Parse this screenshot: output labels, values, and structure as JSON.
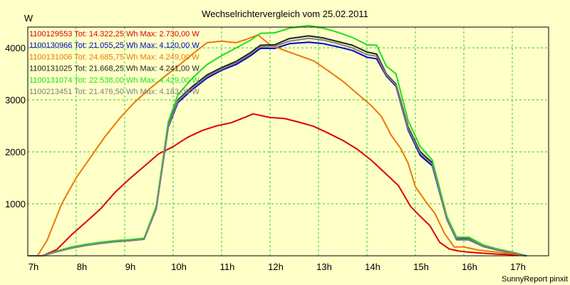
{
  "chart_data": {
    "type": "line",
    "title": "Wechselrichtervergleich vom 25.02.2011",
    "ylabel": "W",
    "footer": "SunnyReport pinxit",
    "ylim": [
      0,
      4400
    ],
    "xlim": [
      7,
      17.75
    ],
    "yticks": [
      1000,
      2000,
      3000,
      4000
    ],
    "xticks": [
      {
        "v": 7,
        "label": "7h"
      },
      {
        "v": 8,
        "label": "8h"
      },
      {
        "v": 9,
        "label": "9h"
      },
      {
        "v": 10,
        "label": "10h"
      },
      {
        "v": 11,
        "label": "11h"
      },
      {
        "v": 12,
        "label": "12h"
      },
      {
        "v": 13,
        "label": "13h"
      },
      {
        "v": 14,
        "label": "14h"
      },
      {
        "v": 15,
        "label": "15h"
      },
      {
        "v": 16,
        "label": "16h"
      },
      {
        "v": 17,
        "label": "17h"
      }
    ],
    "grid": true,
    "series": [
      {
        "name": "1100129553 Tot: 14.322,25 Wh Max: 2.730,00 W",
        "color": "#dd0000",
        "points": [
          [
            7,
            0
          ],
          [
            7.3,
            0
          ],
          [
            7.6,
            120
          ],
          [
            7.9,
            400
          ],
          [
            8.2,
            650
          ],
          [
            8.5,
            900
          ],
          [
            8.8,
            1220
          ],
          [
            9.1,
            1480
          ],
          [
            9.4,
            1720
          ],
          [
            9.7,
            1960
          ],
          [
            10,
            2100
          ],
          [
            10.3,
            2280
          ],
          [
            10.6,
            2410
          ],
          [
            10.9,
            2500
          ],
          [
            11.2,
            2560
          ],
          [
            11.5,
            2670
          ],
          [
            11.65,
            2730
          ],
          [
            12,
            2660
          ],
          [
            12.3,
            2640
          ],
          [
            12.6,
            2570
          ],
          [
            12.9,
            2490
          ],
          [
            13.2,
            2360
          ],
          [
            13.5,
            2220
          ],
          [
            13.8,
            2050
          ],
          [
            14.1,
            1830
          ],
          [
            14.4,
            1570
          ],
          [
            14.65,
            1350
          ],
          [
            14.9,
            950
          ],
          [
            15.1,
            760
          ],
          [
            15.3,
            580
          ],
          [
            15.5,
            260
          ],
          [
            15.7,
            130
          ],
          [
            15.9,
            90
          ],
          [
            16.1,
            70
          ],
          [
            16.4,
            50
          ],
          [
            16.7,
            30
          ],
          [
            17,
            20
          ],
          [
            17.3,
            0
          ]
        ]
      },
      {
        "name": "1100130966 Tot: 21.055,25 Wh Max: 4.120,00 W",
        "color": "#0000cc",
        "points": [
          [
            7,
            0
          ],
          [
            7.3,
            0
          ],
          [
            7.6,
            80
          ],
          [
            7.9,
            150
          ],
          [
            8.2,
            200
          ],
          [
            8.5,
            240
          ],
          [
            8.8,
            270
          ],
          [
            9.1,
            290
          ],
          [
            9.4,
            320
          ],
          [
            9.65,
            900
          ],
          [
            9.9,
            2480
          ],
          [
            10.1,
            2950
          ],
          [
            10.4,
            3200
          ],
          [
            10.7,
            3420
          ],
          [
            11,
            3570
          ],
          [
            11.3,
            3680
          ],
          [
            11.6,
            3850
          ],
          [
            11.8,
            3990
          ],
          [
            12.1,
            3990
          ],
          [
            12.4,
            4080
          ],
          [
            12.8,
            4110
          ],
          [
            13.1,
            4080
          ],
          [
            13.4,
            4020
          ],
          [
            13.7,
            3950
          ],
          [
            14,
            3820
          ],
          [
            14.2,
            3790
          ],
          [
            14.4,
            3460
          ],
          [
            14.6,
            3260
          ],
          [
            14.85,
            2420
          ],
          [
            15.1,
            1930
          ],
          [
            15.35,
            1730
          ],
          [
            15.65,
            700
          ],
          [
            15.85,
            310
          ],
          [
            16.1,
            310
          ],
          [
            16.4,
            180
          ],
          [
            16.7,
            110
          ],
          [
            17,
            60
          ],
          [
            17.3,
            0
          ]
        ]
      },
      {
        "name": "1100131006 Tot: 24.685,75 Wh Max: 4.249,00 W",
        "color": "#ee7700",
        "points": [
          [
            7,
            0
          ],
          [
            7.2,
            0
          ],
          [
            7.4,
            300
          ],
          [
            7.7,
            1000
          ],
          [
            8,
            1500
          ],
          [
            8.3,
            1900
          ],
          [
            8.6,
            2300
          ],
          [
            8.9,
            2650
          ],
          [
            9.2,
            2950
          ],
          [
            9.5,
            3200
          ],
          [
            9.8,
            3430
          ],
          [
            10.1,
            3650
          ],
          [
            10.4,
            3880
          ],
          [
            10.7,
            4100
          ],
          [
            11,
            4130
          ],
          [
            11.3,
            4100
          ],
          [
            11.5,
            4160
          ],
          [
            11.75,
            4249
          ],
          [
            12,
            4060
          ],
          [
            12.3,
            3950
          ],
          [
            12.6,
            3850
          ],
          [
            12.9,
            3750
          ],
          [
            13.2,
            3560
          ],
          [
            13.5,
            3360
          ],
          [
            13.8,
            3120
          ],
          [
            14.1,
            2880
          ],
          [
            14.3,
            2680
          ],
          [
            14.5,
            2320
          ],
          [
            14.7,
            2060
          ],
          [
            14.85,
            1780
          ],
          [
            15,
            1330
          ],
          [
            15.2,
            1060
          ],
          [
            15.4,
            820
          ],
          [
            15.6,
            430
          ],
          [
            15.8,
            170
          ],
          [
            16,
            170
          ],
          [
            16.3,
            110
          ],
          [
            16.6,
            80
          ],
          [
            17,
            40
          ],
          [
            17.3,
            0
          ]
        ]
      },
      {
        "name": "1100131025 Tot: 21.668,25 Wh Max: 4.241,00 W",
        "color": "#222222",
        "points": [
          [
            7,
            0
          ],
          [
            7.3,
            0
          ],
          [
            7.6,
            80
          ],
          [
            7.9,
            150
          ],
          [
            8.2,
            200
          ],
          [
            8.5,
            240
          ],
          [
            8.8,
            270
          ],
          [
            9.1,
            290
          ],
          [
            9.4,
            320
          ],
          [
            9.65,
            900
          ],
          [
            9.9,
            2520
          ],
          [
            10.1,
            3000
          ],
          [
            10.4,
            3260
          ],
          [
            10.7,
            3480
          ],
          [
            11,
            3620
          ],
          [
            11.3,
            3740
          ],
          [
            11.6,
            3910
          ],
          [
            11.8,
            4050
          ],
          [
            12.1,
            4060
          ],
          [
            12.4,
            4180
          ],
          [
            12.8,
            4230
          ],
          [
            13.1,
            4190
          ],
          [
            13.4,
            4120
          ],
          [
            13.7,
            4050
          ],
          [
            14,
            3920
          ],
          [
            14.2,
            3880
          ],
          [
            14.4,
            3500
          ],
          [
            14.6,
            3300
          ],
          [
            14.85,
            2480
          ],
          [
            15.1,
            2000
          ],
          [
            15.35,
            1790
          ],
          [
            15.65,
            720
          ],
          [
            15.85,
            330
          ],
          [
            16.1,
            330
          ],
          [
            16.4,
            190
          ],
          [
            16.7,
            120
          ],
          [
            17,
            60
          ],
          [
            17.3,
            0
          ]
        ]
      },
      {
        "name": "1100131074 Tot: 22.538,00 Wh Max: 4.429,00 W",
        "color": "#22dd22",
        "points": [
          [
            7,
            0
          ],
          [
            7.3,
            0
          ],
          [
            7.6,
            90
          ],
          [
            7.9,
            170
          ],
          [
            8.2,
            220
          ],
          [
            8.5,
            260
          ],
          [
            8.8,
            290
          ],
          [
            9.1,
            310
          ],
          [
            9.4,
            340
          ],
          [
            9.65,
            950
          ],
          [
            9.9,
            2580
          ],
          [
            10.1,
            3100
          ],
          [
            10.4,
            3420
          ],
          [
            10.7,
            3680
          ],
          [
            11,
            3850
          ],
          [
            11.3,
            4000
          ],
          [
            11.6,
            4150
          ],
          [
            11.8,
            4280
          ],
          [
            12.1,
            4290
          ],
          [
            12.4,
            4380
          ],
          [
            12.8,
            4429
          ],
          [
            13.1,
            4380
          ],
          [
            13.4,
            4300
          ],
          [
            13.7,
            4200
          ],
          [
            14,
            4060
          ],
          [
            14.2,
            4050
          ],
          [
            14.4,
            3650
          ],
          [
            14.6,
            3500
          ],
          [
            14.85,
            2600
          ],
          [
            15.1,
            2100
          ],
          [
            15.35,
            1840
          ],
          [
            15.65,
            760
          ],
          [
            15.85,
            360
          ],
          [
            16.1,
            360
          ],
          [
            16.4,
            210
          ],
          [
            16.7,
            130
          ],
          [
            17,
            70
          ],
          [
            17.3,
            0
          ]
        ]
      },
      {
        "name": "1100213451 Tot: 21.476,50 Wh Max: 4.183,00 W",
        "color": "#808080",
        "points": [
          [
            7,
            0
          ],
          [
            7.3,
            0
          ],
          [
            7.6,
            80
          ],
          [
            7.9,
            150
          ],
          [
            8.2,
            200
          ],
          [
            8.5,
            240
          ],
          [
            8.8,
            270
          ],
          [
            9.1,
            290
          ],
          [
            9.4,
            320
          ],
          [
            9.65,
            900
          ],
          [
            9.9,
            2500
          ],
          [
            10.1,
            2980
          ],
          [
            10.4,
            3230
          ],
          [
            10.7,
            3450
          ],
          [
            11,
            3590
          ],
          [
            11.3,
            3710
          ],
          [
            11.6,
            3880
          ],
          [
            11.8,
            4020
          ],
          [
            12.1,
            4030
          ],
          [
            12.4,
            4130
          ],
          [
            12.8,
            4183
          ],
          [
            13.1,
            4150
          ],
          [
            13.4,
            4080
          ],
          [
            13.7,
            4000
          ],
          [
            14,
            3870
          ],
          [
            14.2,
            3840
          ],
          [
            14.4,
            3480
          ],
          [
            14.6,
            3280
          ],
          [
            14.85,
            2450
          ],
          [
            15.1,
            1970
          ],
          [
            15.35,
            1760
          ],
          [
            15.65,
            710
          ],
          [
            15.85,
            320
          ],
          [
            16.1,
            320
          ],
          [
            16.4,
            185
          ],
          [
            16.7,
            115
          ],
          [
            17,
            60
          ],
          [
            17.3,
            0
          ]
        ]
      }
    ]
  }
}
